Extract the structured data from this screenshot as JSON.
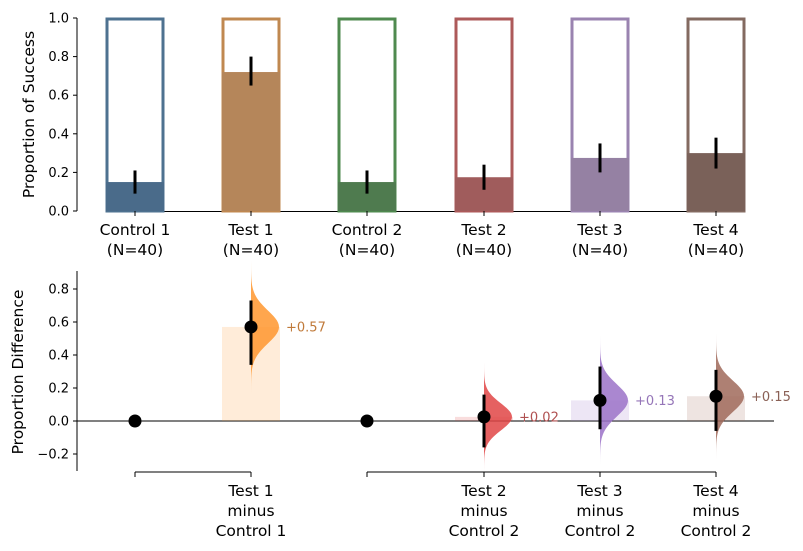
{
  "chart_data": [
    {
      "type": "bar",
      "ylabel": "Proportion of Success",
      "ylim": [
        0,
        1.0
      ],
      "yticks": [
        "0.0",
        "0.2",
        "0.4",
        "0.6",
        "0.8",
        "1.0"
      ],
      "categories": [
        {
          "line1": "Control 1",
          "line2": "(N=40)"
        },
        {
          "line1": "Test 1",
          "line2": "(N=40)"
        },
        {
          "line1": "Control 2",
          "line2": "(N=40)"
        },
        {
          "line1": "Test 2",
          "line2": "(N=40)"
        },
        {
          "line1": "Test 3",
          "line2": "(N=40)"
        },
        {
          "line1": "Test 4",
          "line2": "(N=40)"
        }
      ],
      "values": [
        0.15,
        0.72,
        0.15,
        0.175,
        0.275,
        0.3
      ],
      "error_bars": [
        [
          0.09,
          0.21
        ],
        [
          0.65,
          0.8
        ],
        [
          0.09,
          0.21
        ],
        [
          0.11,
          0.24
        ],
        [
          0.2,
          0.35
        ],
        [
          0.22,
          0.38
        ]
      ],
      "colors": [
        "#4a6b8a",
        "#b5865a",
        "#4f7b4f",
        "#a05c5c",
        "#9581a3",
        "#7a6159"
      ],
      "edge_colors": [
        "#4e7290",
        "#c08850",
        "#4f8a4f",
        "#ad5a5a",
        "#9a83b0",
        "#836a60"
      ]
    },
    {
      "type": "scatter",
      "ylabel": "Proportion Difference",
      "ylim": [
        -0.3,
        0.9
      ],
      "yticks": [
        "−0.2",
        "0.0",
        "0.2",
        "0.4",
        "0.6",
        "0.8"
      ],
      "groups": [
        {
          "line1": "Test 1",
          "line2": "minus",
          "line3": "Control 1"
        },
        {
          "line1": "Test 2",
          "line2": "minus",
          "line3": "Control 2"
        },
        {
          "line1": "Test 3",
          "line2": "minus",
          "line3": "Control 2"
        },
        {
          "line1": "Test 4",
          "line2": "minus",
          "line3": "Control 2"
        }
      ],
      "reference_points": [
        0.0,
        0.0
      ],
      "differences": [
        0.57,
        0.025,
        0.125,
        0.15
      ],
      "ci": [
        [
          0.34,
          0.73
        ],
        [
          -0.16,
          0.16
        ],
        [
          -0.05,
          0.33
        ],
        [
          -0.06,
          0.31
        ]
      ],
      "labels": [
        "+0.57",
        "+0.02",
        "+0.13",
        "+0.15"
      ],
      "colors": [
        "#ff962e",
        "#e04545",
        "#9b72c8",
        "#a06a5a"
      ],
      "label_colors": [
        "#c07a3a",
        "#b05050",
        "#9575b8",
        "#8a6055"
      ]
    }
  ]
}
